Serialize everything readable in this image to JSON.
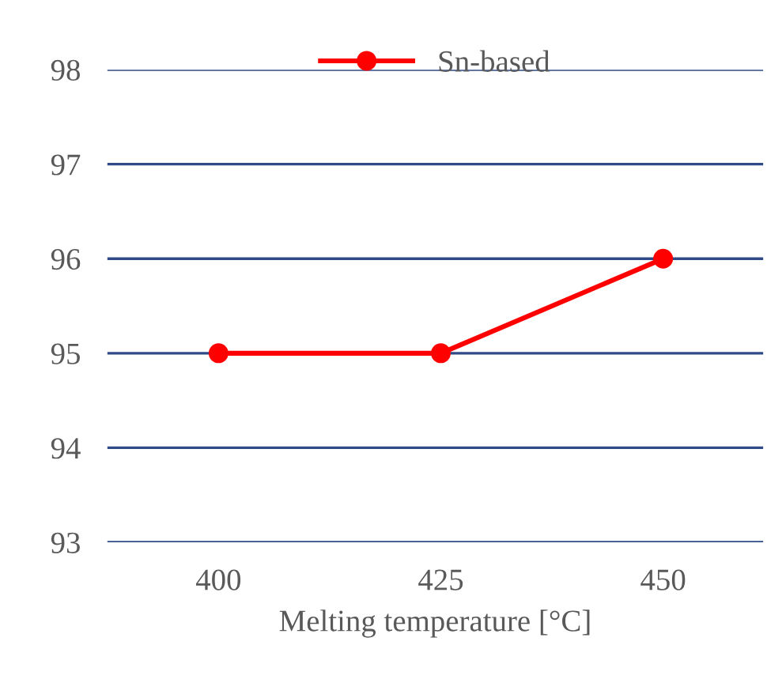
{
  "chart_data": {
    "type": "line",
    "xlabel": "Melting temperature [°C]",
    "categories": [
      "400",
      "425",
      "450"
    ],
    "series": [
      {
        "name": "Sn-based",
        "color": "#ff0000",
        "values": [
          95,
          95,
          96
        ]
      }
    ],
    "ylim": [
      93,
      98
    ],
    "yticks": [
      93,
      94,
      95,
      96,
      97,
      98
    ],
    "grid": "y",
    "legend": "top",
    "marker": "circle",
    "line_style": "solid"
  }
}
